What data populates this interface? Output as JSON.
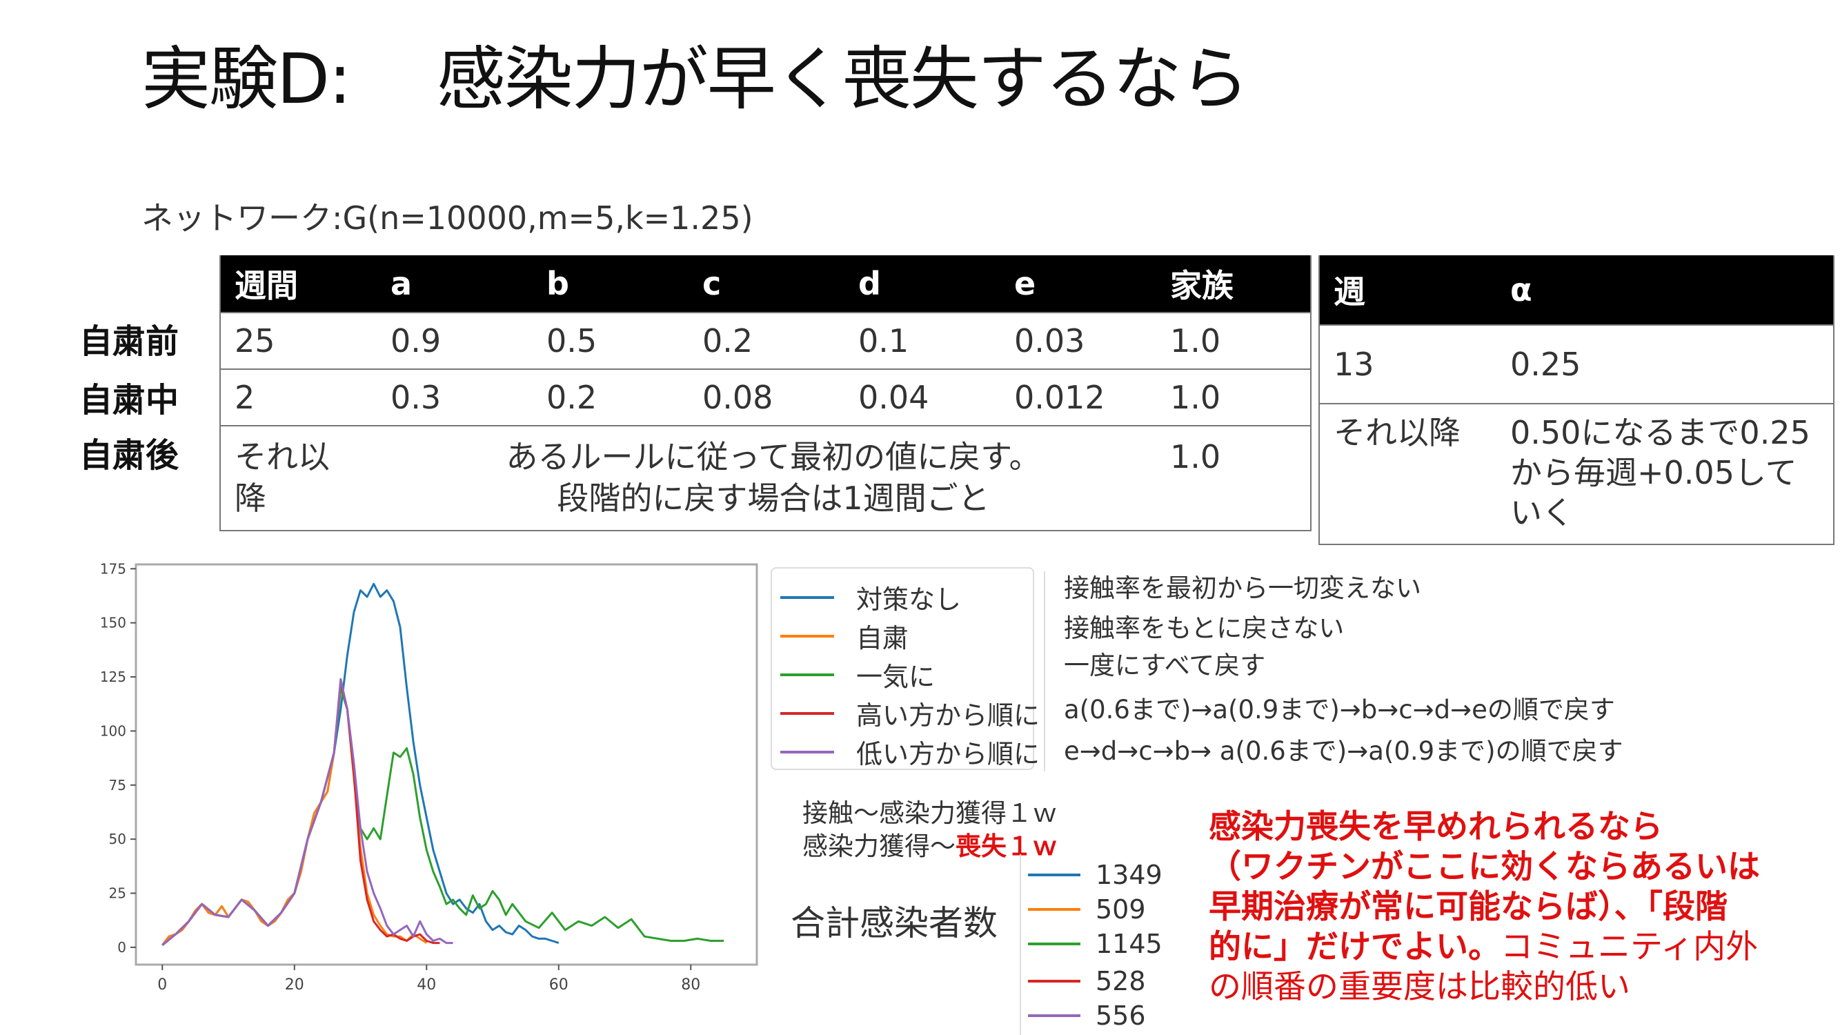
{
  "title": {
    "part1": "実験D:",
    "part2": "感染力が早く喪失するなら"
  },
  "network": "ネットワーク:G(n=10000,m=5,k=1.25)",
  "table1": {
    "headers": [
      "週間",
      "a",
      "b",
      "c",
      "d",
      "e",
      "家族"
    ],
    "row_labels": [
      "自粛前",
      "自粛中",
      "自粛後"
    ],
    "rows": [
      [
        "25",
        "0.9",
        "0.5",
        "0.2",
        "0.1",
        "0.03",
        "1.0"
      ],
      [
        "2",
        "0.3",
        "0.2",
        "0.08",
        "0.04",
        "0.012",
        "1.0"
      ]
    ],
    "after": {
      "period_line1": "それ以",
      "period_line2": "降",
      "rule_line1": "あるルールに従って最初の値に戻す。",
      "rule_line2": "段階的に戻す場合は1週間ごと",
      "family": "1.0"
    }
  },
  "table2": {
    "headers": [
      "週",
      "α"
    ],
    "row1": [
      "13",
      "0.25"
    ],
    "row2": {
      "label": "それ以降",
      "line1": "0.50になるまで0.25",
      "line2": "から毎週+0.05して",
      "line3": "いく"
    }
  },
  "legend": {
    "items": [
      {
        "label": "対策なし",
        "color": "#1f77b4",
        "desc": "接触率を最初から一切変えない"
      },
      {
        "label": "自粛",
        "color": "#ff7f0e",
        "desc": "接触率をもとに戻さない"
      },
      {
        "label": "一気に",
        "color": "#2ca02c",
        "desc": "一度にすべて戻す"
      },
      {
        "label": "高い方から順に",
        "color": "#d62728",
        "desc": "a(0.6まで)→a(0.9まで)→b→c→d→eの順で戻す"
      },
      {
        "label": "低い方から順に",
        "color": "#9467bd",
        "desc": "e→d→c→b→ a(0.6まで)→a(0.9まで)の順で戻す"
      }
    ]
  },
  "notes": {
    "line1": "接触～感染力獲得１ｗ",
    "line2_prefix": "感染力獲得～",
    "line2_red": "喪失１ｗ"
  },
  "totals": {
    "label": "合計感染者数",
    "values": [
      "1349",
      "509",
      "1145",
      "528",
      "556"
    ]
  },
  "conclusion": {
    "bold_line1": "感染力喪失を早めれられるなら",
    "bold_line2": "（ワクチンがここに効くならあるいは",
    "bold_line3": "早期治療が常に可能ならば）、「段階",
    "bold_line4": "的に」だけでよい。",
    "normal_tail": "コミュニティ内外",
    "normal_line5": "の順番の重要度は比較的低い"
  },
  "chart_data": {
    "type": "line",
    "xlim": [
      -4,
      90
    ],
    "ylim": [
      -8,
      177
    ],
    "xticks": [
      0,
      20,
      40,
      60,
      80
    ],
    "yticks": [
      0,
      25,
      50,
      75,
      100,
      125,
      150,
      175
    ],
    "series": [
      {
        "name": "対策なし",
        "color": "#1f77b4",
        "x": [
          0,
          1,
          2,
          3,
          4,
          5,
          6,
          7,
          8,
          9,
          10,
          11,
          12,
          13,
          14,
          15,
          16,
          17,
          18,
          19,
          20,
          21,
          22,
          23,
          24,
          25,
          26,
          27,
          28,
          29,
          30,
          31,
          32,
          33,
          34,
          35,
          36,
          37,
          38,
          39,
          40,
          41,
          42,
          43,
          44,
          45,
          46,
          47,
          48,
          49,
          50,
          51,
          52,
          53,
          54,
          55,
          56,
          57,
          58,
          59,
          60
        ],
        "y": [
          1,
          5,
          6,
          8,
          12,
          17,
          20,
          16,
          15,
          19,
          14,
          18,
          22,
          21,
          17,
          12,
          10,
          12,
          16,
          22,
          25,
          35,
          50,
          62,
          67,
          72,
          90,
          110,
          135,
          155,
          165,
          162,
          168,
          162,
          165,
          160,
          148,
          120,
          95,
          75,
          60,
          45,
          35,
          25,
          20,
          22,
          18,
          16,
          20,
          12,
          8,
          10,
          7,
          6,
          10,
          8,
          5,
          4,
          4,
          3,
          2
        ]
      },
      {
        "name": "自粛",
        "color": "#ff7f0e",
        "x": [
          0,
          1,
          2,
          3,
          4,
          5,
          6,
          7,
          8,
          9,
          10,
          11,
          12,
          13,
          14,
          15,
          16,
          17,
          18,
          19,
          20,
          21,
          22,
          23,
          24,
          25,
          26,
          27,
          28,
          29,
          30,
          31,
          32,
          33,
          34,
          35,
          36,
          37,
          38,
          39,
          40
        ],
        "y": [
          1,
          5,
          6,
          8,
          12,
          17,
          20,
          16,
          15,
          19,
          14,
          18,
          22,
          21,
          17,
          12,
          10,
          12,
          16,
          22,
          25,
          35,
          50,
          62,
          67,
          72,
          90,
          120,
          110,
          78,
          46,
          25,
          15,
          10,
          6,
          5,
          5,
          3,
          6,
          4,
          2
        ]
      },
      {
        "name": "一気に",
        "color": "#2ca02c",
        "x": [
          0,
          2,
          4,
          6,
          8,
          10,
          12,
          14,
          16,
          18,
          20,
          22,
          24,
          26,
          27,
          28,
          29,
          30,
          31,
          32,
          33,
          34,
          35,
          36,
          37,
          38,
          39,
          40,
          41,
          42,
          43,
          44,
          45,
          46,
          47,
          48,
          49,
          50,
          51,
          52,
          53,
          55,
          57,
          59,
          61,
          63,
          65,
          67,
          69,
          71,
          73,
          75,
          77,
          79,
          81,
          83,
          85
        ],
        "y": [
          1,
          6,
          12,
          20,
          15,
          14,
          22,
          17,
          10,
          16,
          25,
          50,
          67,
          90,
          120,
          110,
          80,
          55,
          50,
          55,
          50,
          70,
          90,
          88,
          92,
          80,
          60,
          45,
          35,
          28,
          20,
          22,
          18,
          15,
          24,
          18,
          20,
          26,
          22,
          15,
          20,
          12,
          9,
          16,
          8,
          12,
          10,
          14,
          9,
          13,
          5,
          4,
          3,
          3,
          4,
          3,
          3
        ]
      },
      {
        "name": "高い方から順に",
        "color": "#d62728",
        "x": [
          0,
          2,
          4,
          6,
          8,
          10,
          12,
          14,
          16,
          18,
          20,
          22,
          24,
          26,
          27,
          28,
          29,
          30,
          31,
          32,
          33,
          34,
          35,
          36,
          37,
          38,
          39,
          40,
          41,
          42
        ],
        "y": [
          1,
          6,
          12,
          20,
          15,
          14,
          22,
          17,
          10,
          16,
          25,
          50,
          67,
          90,
          123,
          110,
          80,
          40,
          22,
          12,
          8,
          5,
          6,
          4,
          3,
          5,
          6,
          3,
          2,
          2
        ]
      },
      {
        "name": "低い方から順に",
        "color": "#9467bd",
        "x": [
          0,
          2,
          4,
          6,
          8,
          10,
          12,
          14,
          16,
          18,
          20,
          22,
          24,
          26,
          27,
          28,
          29,
          30,
          31,
          32,
          33,
          34,
          35,
          36,
          37,
          38,
          39,
          40,
          41,
          42,
          43,
          44
        ],
        "y": [
          1,
          6,
          12,
          20,
          15,
          14,
          22,
          17,
          10,
          16,
          25,
          50,
          67,
          90,
          124,
          110,
          85,
          55,
          35,
          25,
          18,
          10,
          6,
          8,
          10,
          5,
          12,
          6,
          3,
          4,
          2,
          2
        ]
      }
    ]
  }
}
